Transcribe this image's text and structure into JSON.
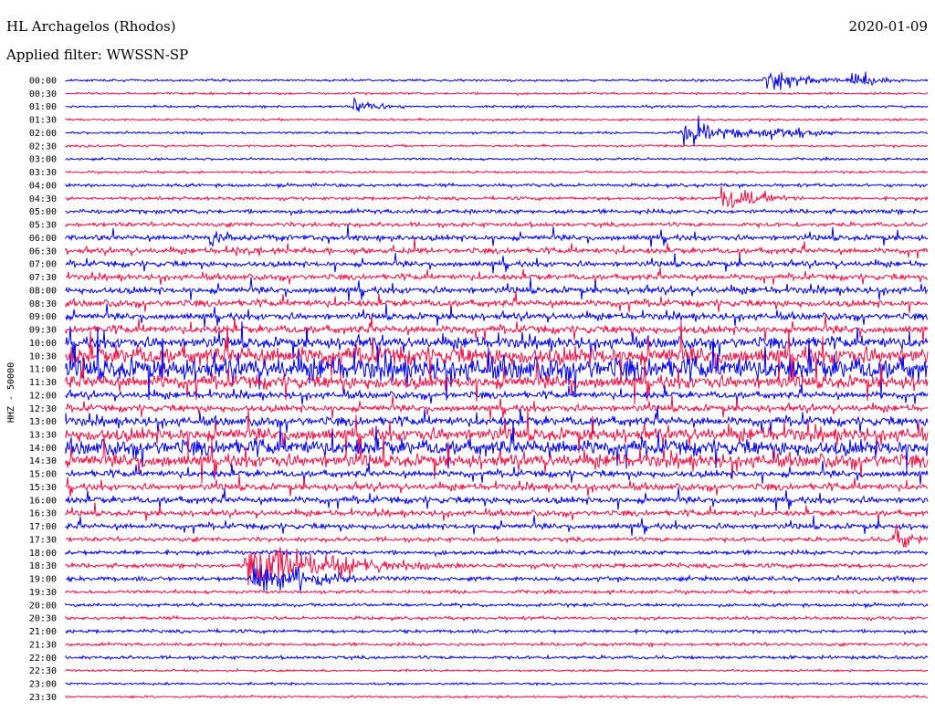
{
  "header": {
    "station": "HL Archagelos (Rhodos)",
    "filter": "Applied filter: WWSSN-SP",
    "date": "2020-01-09"
  },
  "chart_data": {
    "type": "line",
    "subtype": "helicorder-seismogram",
    "title": "HL Archagelos (Rhodos)",
    "subtitle": "Applied filter: WWSSN-SP",
    "ylabel": "HHZ - 50000",
    "line_interval_minutes": 30,
    "minutes_per_line": 30,
    "colors": [
      "#0000ee",
      "#ee1144"
    ],
    "tick_labels": [
      "00:00",
      "00:30",
      "01:00",
      "01:30",
      "02:00",
      "02:30",
      "03:00",
      "03:30",
      "04:00",
      "04:30",
      "05:00",
      "05:30",
      "06:00",
      "06:30",
      "07:00",
      "07:30",
      "08:00",
      "08:30",
      "09:00",
      "09:30",
      "10:00",
      "10:30",
      "11:00",
      "11:30",
      "12:00",
      "12:30",
      "13:00",
      "13:30",
      "14:00",
      "14:30",
      "15:00",
      "15:30",
      "16:00",
      "16:30",
      "17:00",
      "17:30",
      "18:00",
      "18:30",
      "19:00",
      "19:30",
      "20:00",
      "20:30",
      "21:00",
      "21:30",
      "22:00",
      "22:30",
      "23:00",
      "23:30"
    ],
    "noise_level": [
      1,
      1,
      1,
      1,
      1,
      1,
      1,
      1,
      1.5,
      1.5,
      2,
      2,
      2.5,
      2.5,
      2.5,
      2.5,
      3,
      3,
      3,
      3.5,
      5,
      8,
      10,
      6,
      3,
      3,
      4,
      6,
      7,
      6,
      3,
      3,
      3,
      2.5,
      2.5,
      2,
      2,
      2,
      2,
      1.5,
      1.5,
      1.5,
      1.5,
      1.5,
      1.5,
      1,
      1,
      1
    ],
    "events": [
      {
        "line": 0,
        "minute": 24.3,
        "amplitude": 12,
        "duration_min": 1.5,
        "label": "large-earthquake"
      },
      {
        "line": 0,
        "minute": 27.3,
        "amplitude": 10,
        "duration_min": 1,
        "label": "local-event"
      },
      {
        "line": 2,
        "minute": 10.0,
        "amplitude": 9,
        "duration_min": 1,
        "label": "local-event"
      },
      {
        "line": 4,
        "minute": 21.5,
        "amplitude": 12,
        "duration_min": 2,
        "label": "coda"
      },
      {
        "line": 4,
        "minute": 24.0,
        "amplitude": 10,
        "duration_min": 1.5,
        "label": "local-event"
      },
      {
        "line": 9,
        "minute": 22.8,
        "amplitude": 14,
        "duration_min": 1.5,
        "label": "local-event"
      },
      {
        "line": 12,
        "minute": 5.0,
        "amplitude": 9,
        "duration_min": 1,
        "label": "local-event"
      },
      {
        "line": 13,
        "minute": 5.8,
        "amplitude": 8,
        "duration_min": 1,
        "label": "local-event"
      },
      {
        "line": 37,
        "minute": 6.3,
        "amplitude": 30,
        "duration_min": 3,
        "label": "large-earthquake"
      },
      {
        "line": 38,
        "minute": 6.5,
        "amplitude": 20,
        "duration_min": 2,
        "label": "coda"
      },
      {
        "line": 35,
        "minute": 28.8,
        "amplitude": 16,
        "duration_min": 1,
        "label": "local-event"
      }
    ]
  }
}
